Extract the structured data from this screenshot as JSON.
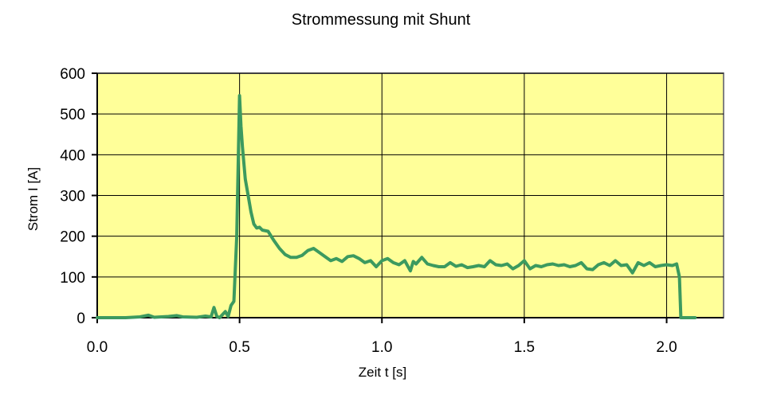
{
  "chart_data": {
    "type": "line",
    "title": "Strommessung mit Shunt",
    "xlabel": "Zeit t [s]",
    "ylabel": "Strom I [A]",
    "xlim": [
      0,
      2.2
    ],
    "ylim": [
      0,
      600
    ],
    "x_ticks": [
      0.0,
      0.5,
      1.0,
      1.5,
      2.0
    ],
    "x_tick_labels": [
      "0.0",
      "0.5",
      "1.0",
      "1.5",
      "2.0"
    ],
    "y_ticks": [
      0,
      100,
      200,
      300,
      400,
      500,
      600
    ],
    "y_tick_labels": [
      "0",
      "100",
      "200",
      "300",
      "400",
      "500",
      "600"
    ],
    "grid": true,
    "legend": "none",
    "colors": {
      "plot_background": "#ffff99",
      "series_line": "#3c9a5f",
      "grid": "#000000",
      "plot_border": "#808080"
    },
    "series": [
      {
        "x": [
          0.0,
          0.1,
          0.15,
          0.18,
          0.2,
          0.25,
          0.28,
          0.3,
          0.35,
          0.38,
          0.4,
          0.41,
          0.42,
          0.43,
          0.45,
          0.46,
          0.47,
          0.48,
          0.49,
          0.5,
          0.505,
          0.51,
          0.52,
          0.53,
          0.54,
          0.55,
          0.56,
          0.57,
          0.58,
          0.6,
          0.62,
          0.64,
          0.66,
          0.68,
          0.7,
          0.72,
          0.74,
          0.76,
          0.78,
          0.8,
          0.82,
          0.84,
          0.86,
          0.88,
          0.9,
          0.92,
          0.94,
          0.96,
          0.98,
          1.0,
          1.02,
          1.04,
          1.06,
          1.08,
          1.1,
          1.11,
          1.12,
          1.14,
          1.16,
          1.18,
          1.2,
          1.22,
          1.24,
          1.26,
          1.28,
          1.3,
          1.32,
          1.34,
          1.36,
          1.38,
          1.4,
          1.42,
          1.44,
          1.46,
          1.48,
          1.5,
          1.52,
          1.54,
          1.56,
          1.58,
          1.6,
          1.62,
          1.64,
          1.66,
          1.68,
          1.7,
          1.72,
          1.74,
          1.76,
          1.78,
          1.8,
          1.82,
          1.84,
          1.86,
          1.88,
          1.9,
          1.92,
          1.94,
          1.96,
          1.98,
          2.0,
          2.02,
          2.035,
          2.045,
          2.05,
          2.06,
          2.1
        ],
        "y": [
          0,
          0,
          2,
          6,
          1,
          3,
          5,
          2,
          1,
          4,
          2,
          25,
          3,
          0,
          15,
          3,
          30,
          40,
          200,
          545,
          470,
          420,
          340,
          300,
          260,
          230,
          220,
          222,
          215,
          212,
          190,
          170,
          155,
          148,
          148,
          153,
          165,
          170,
          160,
          150,
          140,
          145,
          138,
          150,
          152,
          145,
          135,
          140,
          125,
          140,
          145,
          135,
          130,
          140,
          115,
          138,
          132,
          148,
          132,
          128,
          125,
          125,
          135,
          126,
          130,
          123,
          125,
          128,
          125,
          140,
          130,
          128,
          132,
          120,
          128,
          140,
          120,
          128,
          125,
          130,
          132,
          128,
          130,
          125,
          128,
          135,
          120,
          118,
          130,
          135,
          128,
          140,
          128,
          130,
          110,
          135,
          128,
          135,
          125,
          128,
          130,
          128,
          132,
          100,
          0,
          0,
          0
        ]
      }
    ]
  }
}
